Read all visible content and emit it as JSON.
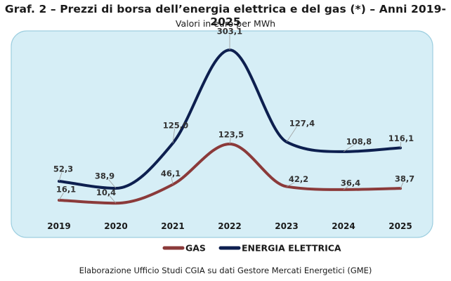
{
  "chart_data": {
    "type": "line",
    "title": "Graf. 2 – Prezzi di borsa dell’energia elettrica e del gas (*) – Anni 2019-2025",
    "subtitle": "Valori in euro per MWh",
    "x": [
      "2019",
      "2020",
      "2021",
      "2022",
      "2023",
      "2024",
      "2025"
    ],
    "series": [
      {
        "name": "ENERGIA ELETTRICA",
        "values": [
          52.3,
          38.9,
          125.0,
          303.1,
          127.4,
          108.8,
          116.1
        ],
        "labels": [
          "52,3",
          "38,9",
          "125,0",
          "303,1",
          "127,4",
          "108,8",
          "116,1"
        ],
        "color": "#0d1f4f"
      },
      {
        "name": "GAS",
        "values": [
          16.1,
          10.4,
          46.1,
          123.5,
          42.2,
          36.4,
          38.7
        ],
        "labels": [
          "16,1",
          "10,4",
          "46,1",
          "123,5",
          "42,2",
          "36,4",
          "38,7"
        ],
        "color": "#8b3a3a"
      }
    ],
    "legend": {
      "position": "bottom",
      "order": [
        "GAS",
        "ENERGIA ELETTRICA"
      ]
    },
    "ylim": [
      0,
      310
    ],
    "grid": false,
    "xlabel": "",
    "ylabel": ""
  },
  "source": "Elaborazione Ufficio Studi CGIA su dati Gestore Mercati Energetici (GME)",
  "colors": {
    "plot_background": "#d6eef6",
    "frame": "#9ecfe0",
    "label_box": "#ffffff",
    "leader": "#9a9a9a",
    "text": "#1a1a1a"
  }
}
